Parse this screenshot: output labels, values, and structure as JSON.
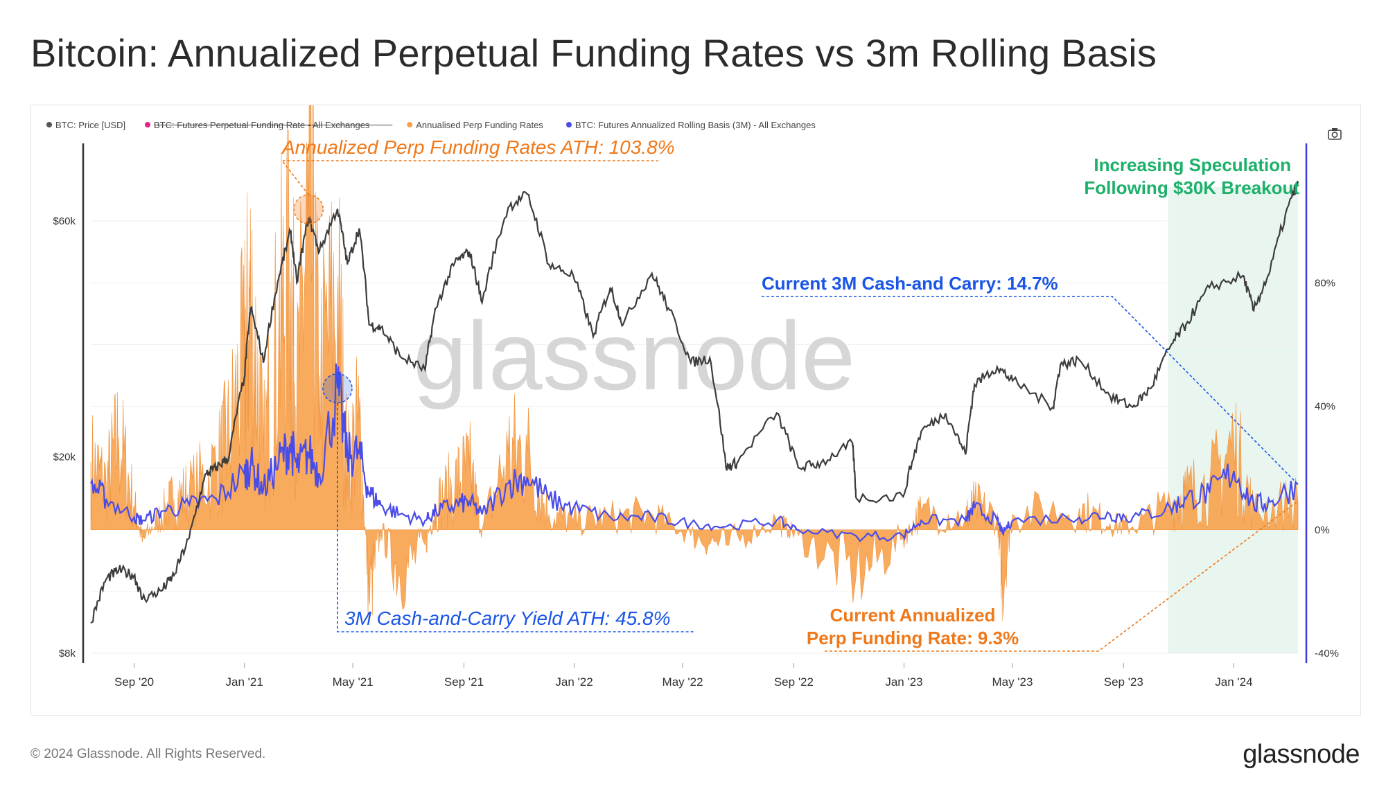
{
  "header": {
    "title": "Bitcoin: Annualized Perpetual Funding Rates vs 3m Rolling Basis"
  },
  "footer": {
    "copyright": "© 2024 Glassnode. All Rights Reserved.",
    "brand": "glassnode"
  },
  "watermark": "glassnode",
  "colors": {
    "price": "#3c3c3c",
    "funding_raw": "#e0248a",
    "funding_annualized": "#f7a24b",
    "basis": "#4a4ce8",
    "annotation_orange": "#f07818",
    "annotation_blue": "#1a55e6",
    "annotation_green": "#1cb06a",
    "highlight": "#e9f6ef"
  },
  "legend": [
    {
      "label": "BTC: Price [USD]",
      "color": "#555555",
      "struck": false
    },
    {
      "label": "BTC: Futures Perpetual Funding Rate - All Exchanges",
      "color": "#e0248a",
      "struck": true
    },
    {
      "label": "Annualised Perp Funding Rates",
      "color": "#f7a24b",
      "struck": false
    },
    {
      "label": "BTC: Futures Annualized Rolling Basis (3M) - All Exchanges",
      "color": "#4a4ce8",
      "struck": false
    }
  ],
  "camera_icon": "camera-icon",
  "annotations": {
    "funding_ath": "Annualized Perp Funding Rates ATH: 103.8%",
    "basis_ath": "3M Cash-and-Carry Yield ATH: 45.8%",
    "current_basis": "Current 3M Cash-and Carry: 14.7%",
    "current_funding_line1": "Current Annualized",
    "current_funding_line2": "Perp Funding Rate: 9.3%",
    "speculation_line1": "Increasing Speculation",
    "speculation_line2": "Following $30K Breakout"
  },
  "chart_data": {
    "type": "line",
    "x_axis": {
      "start": "2020-07-15",
      "end": "2024-03-12",
      "ticks": [
        {
          "label": "Sep '20",
          "date": "2020-09-01"
        },
        {
          "label": "Jan '21",
          "date": "2021-01-01"
        },
        {
          "label": "May '21",
          "date": "2021-05-01"
        },
        {
          "label": "Sep '21",
          "date": "2021-09-01"
        },
        {
          "label": "Jan '22",
          "date": "2022-01-01"
        },
        {
          "label": "May '22",
          "date": "2022-05-01"
        },
        {
          "label": "Sep '22",
          "date": "2022-09-01"
        },
        {
          "label": "Jan '23",
          "date": "2023-01-01"
        },
        {
          "label": "May '23",
          "date": "2023-05-01"
        },
        {
          "label": "Sep '23",
          "date": "2023-09-01"
        },
        {
          "label": "Jan '24",
          "date": "2024-01-01"
        }
      ]
    },
    "y_left": {
      "scale": "log",
      "unit": "USD",
      "min": 8000,
      "max": 80000,
      "ticks": [
        {
          "label": "$8k",
          "value": 8000
        },
        {
          "label": "$20k",
          "value": 20000
        },
        {
          "label": "$60k",
          "value": 60000
        }
      ]
    },
    "y_right": {
      "scale": "linear",
      "unit": "%",
      "min": -40,
      "max": 120,
      "ticks": [
        {
          "label": "-40%",
          "value": -40
        },
        {
          "label": "0%",
          "value": 0
        },
        {
          "label": "40%",
          "value": 40
        },
        {
          "label": "80%",
          "value": 80
        }
      ]
    },
    "highlight_range": {
      "start": "2023-10-20",
      "end": "2024-03-12"
    },
    "series": [
      {
        "name": "BTC: Price [USD]",
        "axis": "left",
        "points": [
          [
            "2020-07-15",
            9200
          ],
          [
            "2020-08-01",
            11300
          ],
          [
            "2020-08-15",
            11800
          ],
          [
            "2020-09-01",
            11500
          ],
          [
            "2020-09-10",
            10300
          ],
          [
            "2020-10-01",
            10700
          ],
          [
            "2020-10-15",
            11500
          ],
          [
            "2020-11-01",
            13700
          ],
          [
            "2020-11-20",
            18500
          ],
          [
            "2020-12-01",
            19000
          ],
          [
            "2020-12-15",
            20000
          ],
          [
            "2021-01-01",
            29000
          ],
          [
            "2021-01-08",
            40000
          ],
          [
            "2021-01-22",
            31000
          ],
          [
            "2021-02-08",
            46000
          ],
          [
            "2021-02-21",
            57000
          ],
          [
            "2021-02-28",
            45000
          ],
          [
            "2021-03-13",
            61000
          ],
          [
            "2021-03-25",
            52000
          ],
          [
            "2021-04-14",
            63500
          ],
          [
            "2021-04-25",
            49000
          ],
          [
            "2021-05-08",
            58000
          ],
          [
            "2021-05-19",
            37000
          ],
          [
            "2021-06-01",
            36500
          ],
          [
            "2021-06-22",
            32000
          ],
          [
            "2021-07-20",
            30000
          ],
          [
            "2021-08-01",
            40000
          ],
          [
            "2021-08-22",
            49500
          ],
          [
            "2021-09-07",
            52000
          ],
          [
            "2021-09-21",
            41000
          ],
          [
            "2021-10-20",
            64000
          ],
          [
            "2021-11-10",
            68000
          ],
          [
            "2021-12-04",
            49000
          ],
          [
            "2021-12-31",
            46500
          ],
          [
            "2022-01-22",
            35000
          ],
          [
            "2022-02-10",
            44000
          ],
          [
            "2022-02-24",
            37000
          ],
          [
            "2022-03-28",
            47000
          ],
          [
            "2022-04-15",
            40000
          ],
          [
            "2022-05-10",
            31000
          ],
          [
            "2022-05-31",
            31700
          ],
          [
            "2022-06-18",
            19000
          ],
          [
            "2022-07-01",
            19500
          ],
          [
            "2022-08-13",
            24500
          ],
          [
            "2022-09-06",
            19000
          ],
          [
            "2022-10-01",
            19400
          ],
          [
            "2022-11-05",
            21300
          ],
          [
            "2022-11-09",
            16500
          ],
          [
            "2022-12-31",
            16600
          ],
          [
            "2023-01-20",
            22500
          ],
          [
            "2023-02-16",
            24500
          ],
          [
            "2023-03-10",
            20200
          ],
          [
            "2023-03-20",
            28000
          ],
          [
            "2023-04-14",
            30400
          ],
          [
            "2023-05-01",
            28500
          ],
          [
            "2023-06-15",
            25200
          ],
          [
            "2023-06-23",
            30700
          ],
          [
            "2023-07-14",
            31400
          ],
          [
            "2023-08-17",
            26500
          ],
          [
            "2023-09-11",
            25200
          ],
          [
            "2023-10-01",
            27500
          ],
          [
            "2023-10-23",
            33500
          ],
          [
            "2023-11-09",
            37000
          ],
          [
            "2023-12-05",
            44000
          ],
          [
            "2024-01-11",
            46500
          ],
          [
            "2024-01-23",
            39500
          ],
          [
            "2024-02-10",
            47500
          ],
          [
            "2024-03-05",
            67000
          ],
          [
            "2024-03-12",
            71500
          ]
        ]
      },
      {
        "name": "Annualised Perp Funding Rates",
        "axis": "right",
        "points": [
          [
            "2020-07-15",
            22
          ],
          [
            "2020-08-01",
            15
          ],
          [
            "2020-08-15",
            30
          ],
          [
            "2020-09-01",
            8
          ],
          [
            "2020-09-10",
            -4
          ],
          [
            "2020-10-01",
            5
          ],
          [
            "2020-10-15",
            10
          ],
          [
            "2020-11-01",
            12
          ],
          [
            "2020-12-01",
            20
          ],
          [
            "2020-12-15",
            30
          ],
          [
            "2021-01-01",
            55
          ],
          [
            "2021-01-08",
            75
          ],
          [
            "2021-01-22",
            25
          ],
          [
            "2021-02-08",
            65
          ],
          [
            "2021-02-21",
            80
          ],
          [
            "2021-02-28",
            40
          ],
          [
            "2021-03-13",
            103.8
          ],
          [
            "2021-03-25",
            50
          ],
          [
            "2021-04-14",
            75
          ],
          [
            "2021-04-25",
            20
          ],
          [
            "2021-05-08",
            35
          ],
          [
            "2021-05-19",
            -22
          ],
          [
            "2021-06-01",
            0
          ],
          [
            "2021-06-22",
            -15
          ],
          [
            "2021-07-20",
            -5
          ],
          [
            "2021-08-01",
            8
          ],
          [
            "2021-08-22",
            15
          ],
          [
            "2021-09-07",
            20
          ],
          [
            "2021-09-21",
            0
          ],
          [
            "2021-10-20",
            25
          ],
          [
            "2021-11-10",
            25
          ],
          [
            "2021-12-04",
            5
          ],
          [
            "2021-12-31",
            3
          ],
          [
            "2022-02-10",
            4
          ],
          [
            "2022-03-28",
            5
          ],
          [
            "2022-05-10",
            -2
          ],
          [
            "2022-06-18",
            -5
          ],
          [
            "2022-08-13",
            3
          ],
          [
            "2022-09-06",
            -2
          ],
          [
            "2022-11-09",
            -15
          ],
          [
            "2022-12-31",
            -3
          ],
          [
            "2023-01-20",
            6
          ],
          [
            "2023-03-10",
            4
          ],
          [
            "2023-03-20",
            8
          ],
          [
            "2023-04-14",
            4
          ],
          [
            "2023-04-20",
            -18
          ],
          [
            "2023-05-01",
            5
          ],
          [
            "2023-07-14",
            7
          ],
          [
            "2023-08-17",
            2
          ],
          [
            "2023-09-11",
            1
          ],
          [
            "2023-10-23",
            8
          ],
          [
            "2023-11-09",
            12
          ],
          [
            "2023-12-05",
            14
          ],
          [
            "2024-01-01",
            28
          ],
          [
            "2024-01-23",
            6
          ],
          [
            "2024-03-12",
            9.3
          ]
        ]
      },
      {
        "name": "BTC: Futures Annualized Rolling Basis (3M) - All Exchanges",
        "axis": "right",
        "points": [
          [
            "2020-07-15",
            15
          ],
          [
            "2020-08-01",
            10
          ],
          [
            "2020-09-01",
            4
          ],
          [
            "2020-09-10",
            3
          ],
          [
            "2020-10-01",
            6
          ],
          [
            "2020-11-01",
            8
          ],
          [
            "2020-12-01",
            10
          ],
          [
            "2021-01-01",
            18
          ],
          [
            "2021-01-08",
            21
          ],
          [
            "2021-01-22",
            13
          ],
          [
            "2021-02-08",
            22
          ],
          [
            "2021-02-21",
            28
          ],
          [
            "2021-02-28",
            20
          ],
          [
            "2021-03-13",
            25
          ],
          [
            "2021-03-25",
            18
          ],
          [
            "2021-04-14",
            45.8
          ],
          [
            "2021-04-25",
            24
          ],
          [
            "2021-05-08",
            25
          ],
          [
            "2021-05-19",
            12
          ],
          [
            "2021-06-01",
            8
          ],
          [
            "2021-06-22",
            5
          ],
          [
            "2021-07-20",
            3
          ],
          [
            "2021-08-01",
            6
          ],
          [
            "2021-08-22",
            8
          ],
          [
            "2021-09-07",
            9
          ],
          [
            "2021-09-21",
            5
          ],
          [
            "2021-10-20",
            15
          ],
          [
            "2021-11-10",
            17
          ],
          [
            "2021-12-04",
            10
          ],
          [
            "2021-12-31",
            7
          ],
          [
            "2022-02-10",
            4
          ],
          [
            "2022-03-28",
            4
          ],
          [
            "2022-05-10",
            2
          ],
          [
            "2022-06-18",
            1
          ],
          [
            "2022-08-13",
            3
          ],
          [
            "2022-09-06",
            0
          ],
          [
            "2022-11-09",
            -2
          ],
          [
            "2022-12-31",
            -2
          ],
          [
            "2023-01-20",
            3
          ],
          [
            "2023-03-10",
            3
          ],
          [
            "2023-03-20",
            7
          ],
          [
            "2023-04-14",
            3
          ],
          [
            "2023-04-20",
            -1
          ],
          [
            "2023-05-01",
            3
          ],
          [
            "2023-07-14",
            4
          ],
          [
            "2023-08-17",
            5
          ],
          [
            "2023-09-11",
            4
          ],
          [
            "2023-10-23",
            7
          ],
          [
            "2023-11-09",
            10
          ],
          [
            "2023-12-05",
            12
          ],
          [
            "2024-01-01",
            19
          ],
          [
            "2024-01-23",
            8
          ],
          [
            "2024-02-10",
            9
          ],
          [
            "2024-03-12",
            14.7
          ]
        ]
      }
    ]
  }
}
